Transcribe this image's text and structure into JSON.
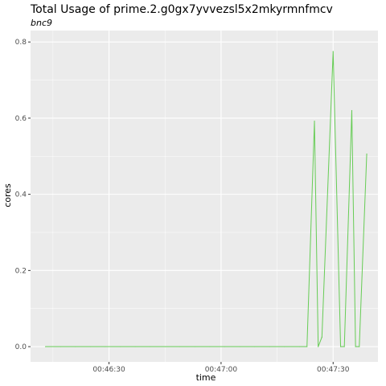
{
  "chart_data": {
    "type": "line",
    "title": "Total Usage of prime.2.g0gx7yvvezsl5x2mkyrmnfmcv",
    "subtitle": "bnc9",
    "xlabel": "time",
    "ylabel": "cores",
    "x_tick_labels": [
      "00:46:30",
      "00:47:00",
      "00:47:30"
    ],
    "y_tick_labels": [
      "0.0",
      "0.2",
      "0.4",
      "0.6",
      "0.8"
    ],
    "xlim": [
      "00:46:09",
      "00:47:42"
    ],
    "ylim": [
      -0.04,
      0.83
    ],
    "x_grid_major": [
      "00:46:30",
      "00:47:00",
      "00:47:30"
    ],
    "x_grid_minor": [
      "00:46:15",
      "00:46:45",
      "00:47:15"
    ],
    "y_grid_major": [
      0.0,
      0.2,
      0.4,
      0.6,
      0.8
    ],
    "y_grid_minor": [
      0.1,
      0.3,
      0.5,
      0.7
    ],
    "grid": true,
    "legend": "none",
    "colors": {
      "panel": "#ebebeb",
      "grid": "#ffffff",
      "line": "#66cc55"
    },
    "series": [
      {
        "x": [
          "00:46:13",
          "00:46:17",
          "00:46:21",
          "00:46:25",
          "00:46:29",
          "00:46:33",
          "00:46:37",
          "00:46:41",
          "00:46:45",
          "00:46:49",
          "00:46:53",
          "00:46:57",
          "00:47:01",
          "00:47:05",
          "00:47:09",
          "00:47:13",
          "00:47:17",
          "00:47:21",
          "00:47:23",
          "00:47:25",
          "00:47:26",
          "00:47:27",
          "00:47:30",
          "00:47:32",
          "00:47:33",
          "00:47:35",
          "00:47:36",
          "00:47:37",
          "00:47:39"
        ],
        "values": [
          0.0,
          0.0,
          0.0,
          0.0,
          0.0,
          0.0,
          0.0,
          0.0,
          0.0,
          0.0,
          0.0,
          0.0,
          0.0,
          0.0,
          0.0,
          0.0,
          0.0,
          0.0,
          0.0,
          0.592,
          0.0,
          0.025,
          0.775,
          0.0,
          0.0,
          0.62,
          0.0,
          0.0,
          0.506
        ]
      }
    ]
  }
}
